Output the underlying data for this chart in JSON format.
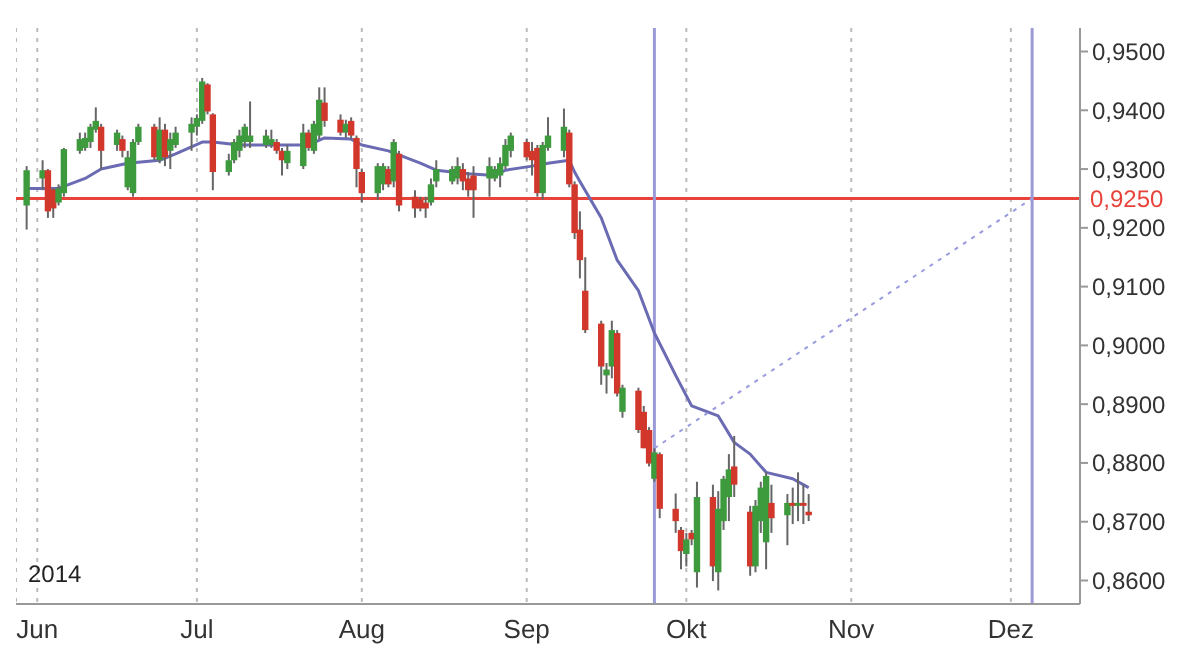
{
  "chart_data": {
    "type": "candlestick",
    "annotations": [
      "2014"
    ],
    "grid": "x",
    "xlim": [
      "2014-05-28",
      "2014-12-14"
    ],
    "xticks": [
      {
        "value": "2014-06-01",
        "label": "Jun"
      },
      {
        "value": "2014-07-01",
        "label": "Jul"
      },
      {
        "value": "2014-08-01",
        "label": "Aug"
      },
      {
        "value": "2014-09-01",
        "label": "Sep"
      },
      {
        "value": "2014-10-01",
        "label": "Okt"
      },
      {
        "value": "2014-11-01",
        "label": "Nov"
      },
      {
        "value": "2014-12-01",
        "label": "Dez"
      }
    ],
    "ylim": [
      0.856,
      0.954
    ],
    "yticks": [
      {
        "value": 0.86,
        "label": "0,8600"
      },
      {
        "value": 0.87,
        "label": "0,8700"
      },
      {
        "value": 0.88,
        "label": "0,8800"
      },
      {
        "value": 0.89,
        "label": "0,8900"
      },
      {
        "value": 0.9,
        "label": "0,9000"
      },
      {
        "value": 0.91,
        "label": "0,9100"
      },
      {
        "value": 0.92,
        "label": "0,9200"
      },
      {
        "value": 0.93,
        "label": "0,9300"
      },
      {
        "value": 0.94,
        "label": "0,9400"
      },
      {
        "value": 0.95,
        "label": "0,9500"
      }
    ],
    "ref_lines": [
      {
        "axis": "y",
        "value": 0.925,
        "label": "0,9250",
        "color": "#e8433a"
      },
      {
        "axis": "x",
        "value": "2014-09-25",
        "color": "#9a9ad6"
      },
      {
        "axis": "x",
        "value": "2014-12-05",
        "color": "#9a9ad6"
      }
    ],
    "series": [
      {
        "type": "candlestick",
        "x": [
          "2014-05-30",
          "2014-06-02",
          "2014-06-03",
          "2014-06-04",
          "2014-06-05",
          "2014-06-06",
          "2014-06-09",
          "2014-06-10",
          "2014-06-11",
          "2014-06-12",
          "2014-06-13",
          "2014-06-16",
          "2014-06-17",
          "2014-06-18",
          "2014-06-19",
          "2014-06-20",
          "2014-06-23",
          "2014-06-24",
          "2014-06-25",
          "2014-06-26",
          "2014-06-27",
          "2014-06-30",
          "2014-07-01",
          "2014-07-02",
          "2014-07-03",
          "2014-07-04",
          "2014-07-07",
          "2014-07-08",
          "2014-07-09",
          "2014-07-10",
          "2014-07-11",
          "2014-07-14",
          "2014-07-15",
          "2014-07-16",
          "2014-07-17",
          "2014-07-18",
          "2014-07-21",
          "2014-07-22",
          "2014-07-23",
          "2014-07-24",
          "2014-07-25",
          "2014-07-28",
          "2014-07-29",
          "2014-07-30",
          "2014-07-31",
          "2014-08-01",
          "2014-08-04",
          "2014-08-05",
          "2014-08-06",
          "2014-08-07",
          "2014-08-08",
          "2014-08-11",
          "2014-08-12",
          "2014-08-13",
          "2014-08-14",
          "2014-08-15",
          "2014-08-18",
          "2014-08-19",
          "2014-08-20",
          "2014-08-21",
          "2014-08-22",
          "2014-08-25",
          "2014-08-26",
          "2014-08-27",
          "2014-08-28",
          "2014-08-29",
          "2014-09-01",
          "2014-09-02",
          "2014-09-03",
          "2014-09-04",
          "2014-09-05",
          "2014-09-08",
          "2014-09-09",
          "2014-09-10",
          "2014-09-11",
          "2014-09-12",
          "2014-09-15",
          "2014-09-16",
          "2014-09-17",
          "2014-09-18",
          "2014-09-19",
          "2014-09-22",
          "2014-09-23",
          "2014-09-24",
          "2014-09-25",
          "2014-09-26",
          "2014-09-29",
          "2014-09-30",
          "2014-10-01",
          "2014-10-02",
          "2014-10-03",
          "2014-10-06",
          "2014-10-07",
          "2014-10-08",
          "2014-10-09",
          "2014-10-10",
          "2014-10-13",
          "2014-10-14",
          "2014-10-15",
          "2014-10-16",
          "2014-10-17",
          "2014-10-20",
          "2014-10-21",
          "2014-10-22",
          "2014-10-23",
          "2014-10-24"
        ],
        "ohlc": [
          [
            0.9238,
            0.9305,
            0.9197,
            0.9298
          ],
          [
            0.9284,
            0.9315,
            0.9264,
            0.9298
          ],
          [
            0.9298,
            0.93,
            0.9217,
            0.9228
          ],
          [
            0.9265,
            0.9268,
            0.9217,
            0.9233
          ],
          [
            0.9243,
            0.9274,
            0.9238,
            0.9267
          ],
          [
            0.9259,
            0.9336,
            0.9253,
            0.9334
          ],
          [
            0.9331,
            0.9362,
            0.9326,
            0.9351
          ],
          [
            0.9336,
            0.9362,
            0.9331,
            0.9353
          ],
          [
            0.9346,
            0.9377,
            0.9336,
            0.9372
          ],
          [
            0.9367,
            0.9405,
            0.9362,
            0.9382
          ],
          [
            0.9372,
            0.9377,
            0.93,
            0.9331
          ],
          [
            0.9341,
            0.9367,
            0.9331,
            0.9362
          ],
          [
            0.9351,
            0.9357,
            0.932,
            0.9331
          ],
          [
            0.9269,
            0.9331,
            0.9264,
            0.932
          ],
          [
            0.9259,
            0.9351,
            0.9253,
            0.9346
          ],
          [
            0.9346,
            0.9377,
            0.9341,
            0.9372
          ],
          [
            0.9372,
            0.9377,
            0.9315,
            0.932
          ],
          [
            0.9315,
            0.9388,
            0.931,
            0.9367
          ],
          [
            0.9367,
            0.9377,
            0.9305,
            0.932
          ],
          [
            0.9331,
            0.9362,
            0.93,
            0.9351
          ],
          [
            0.9341,
            0.9372,
            0.9336,
            0.9362
          ],
          [
            0.9362,
            0.9388,
            0.9331,
            0.9377
          ],
          [
            0.9372,
            0.9393,
            0.9357,
            0.9387
          ],
          [
            0.9382,
            0.9455,
            0.9377,
            0.9449
          ],
          [
            0.9444,
            0.9446,
            0.9393,
            0.9398
          ],
          [
            0.9393,
            0.9395,
            0.9264,
            0.9295
          ],
          [
            0.9295,
            0.9326,
            0.9289,
            0.9315
          ],
          [
            0.9315,
            0.9351,
            0.931,
            0.9346
          ],
          [
            0.9331,
            0.9367,
            0.932,
            0.9357
          ],
          [
            0.9346,
            0.9377,
            0.9336,
            0.9372
          ],
          [
            0.9346,
            0.9415,
            0.9336,
            0.9357
          ],
          [
            0.9341,
            0.9367,
            0.9336,
            0.9357
          ],
          [
            0.9341,
            0.9367,
            0.9336,
            0.9351
          ],
          [
            0.9346,
            0.9351,
            0.9326,
            0.9331
          ],
          [
            0.9331,
            0.9336,
            0.9289,
            0.9315
          ],
          [
            0.931,
            0.9341,
            0.93,
            0.9331
          ],
          [
            0.9305,
            0.9377,
            0.93,
            0.9362
          ],
          [
            0.9362,
            0.9367,
            0.9331,
            0.9336
          ],
          [
            0.9331,
            0.9382,
            0.9326,
            0.9377
          ],
          [
            0.9357,
            0.9439,
            0.9351,
            0.9418
          ],
          [
            0.9413,
            0.9439,
            0.9372,
            0.9382
          ],
          [
            0.9384,
            0.9393,
            0.9357,
            0.9362
          ],
          [
            0.9362,
            0.9384,
            0.9353,
            0.9377
          ],
          [
            0.9382,
            0.9388,
            0.9351,
            0.9357
          ],
          [
            0.9353,
            0.9357,
            0.9269,
            0.93
          ],
          [
            0.9295,
            0.93,
            0.9243,
            0.9259
          ],
          [
            0.9259,
            0.931,
            0.9248,
            0.9305
          ],
          [
            0.9274,
            0.931,
            0.9264,
            0.9305
          ],
          [
            0.93,
            0.9305,
            0.9269,
            0.9274
          ],
          [
            0.9279,
            0.9351,
            0.9269,
            0.9346
          ],
          [
            0.9326,
            0.9331,
            0.9228,
            0.9238
          ],
          [
            0.9253,
            0.9264,
            0.9217,
            0.9233
          ],
          [
            0.9248,
            0.9253,
            0.9228,
            0.9233
          ],
          [
            0.9243,
            0.9253,
            0.9217,
            0.9233
          ],
          [
            0.9243,
            0.9284,
            0.9238,
            0.9274
          ],
          [
            0.9279,
            0.9315,
            0.9269,
            0.93
          ],
          [
            0.9279,
            0.9305,
            0.9274,
            0.93
          ],
          [
            0.9284,
            0.932,
            0.9274,
            0.9305
          ],
          [
            0.93,
            0.931,
            0.9264,
            0.9279
          ],
          [
            0.9284,
            0.9295,
            0.9253,
            0.9264
          ],
          [
            0.9289,
            0.9305,
            0.9217,
            0.9264
          ],
          [
            0.9284,
            0.932,
            0.9253,
            0.9305
          ],
          [
            0.9284,
            0.9305,
            0.9279,
            0.93
          ],
          [
            0.9289,
            0.932,
            0.9269,
            0.931
          ],
          [
            0.9305,
            0.9351,
            0.93,
            0.9341
          ],
          [
            0.9331,
            0.9362,
            0.932,
            0.9357
          ],
          [
            0.9346,
            0.9351,
            0.9315,
            0.932
          ],
          [
            0.9331,
            0.9346,
            0.9289,
            0.9315
          ],
          [
            0.9336,
            0.9341,
            0.9253,
            0.9259
          ],
          [
            0.9259,
            0.9346,
            0.9248,
            0.9341
          ],
          [
            0.9336,
            0.9388,
            0.9331,
            0.9357
          ],
          [
            0.9331,
            0.9403,
            0.932,
            0.9372
          ],
          [
            0.9362,
            0.9367,
            0.9269,
            0.9274
          ],
          [
            0.9274,
            0.9279,
            0.9181,
            0.9191
          ],
          [
            0.9197,
            0.9228,
            0.9114,
            0.9145
          ],
          [
            0.9093,
            0.915,
            0.9021,
            0.9026
          ],
          [
            0.9037,
            0.9042,
            0.8933,
            0.8964
          ],
          [
            0.8949,
            0.897,
            0.8918,
            0.8959
          ],
          [
            0.8964,
            0.9042,
            0.8944,
            0.9026
          ],
          [
            0.9021,
            0.9026,
            0.8913,
            0.8918
          ],
          [
            0.8887,
            0.8933,
            0.8877,
            0.8928
          ],
          [
            0.8923,
            0.8928,
            0.8851,
            0.8856
          ],
          [
            0.8887,
            0.8897,
            0.8825,
            0.8825
          ],
          [
            0.8856,
            0.8861,
            0.8794,
            0.8799
          ],
          [
            0.8773,
            0.8825,
            0.8768,
            0.8818
          ],
          [
            0.8815,
            0.8818,
            0.8706,
            0.8722
          ],
          [
            0.8722,
            0.8748,
            0.8681,
            0.8701
          ],
          [
            0.8686,
            0.8691,
            0.8619,
            0.865
          ],
          [
            0.8645,
            0.8681,
            0.8624,
            0.867
          ],
          [
            0.8681,
            0.8686,
            0.866,
            0.867
          ],
          [
            0.8614,
            0.8768,
            0.8588,
            0.8742
          ],
          [
            0.8742,
            0.8763,
            0.8599,
            0.8624
          ],
          [
            0.8614,
            0.8752,
            0.8583,
            0.8722
          ],
          [
            0.8701,
            0.8778,
            0.8686,
            0.8773
          ],
          [
            0.8742,
            0.8815,
            0.8701,
            0.8789
          ],
          [
            0.8794,
            0.8846,
            0.8742,
            0.8763
          ],
          [
            0.8717,
            0.8727,
            0.8608,
            0.8624
          ],
          [
            0.8624,
            0.8737,
            0.8614,
            0.8727
          ],
          [
            0.8701,
            0.8768,
            0.8681,
            0.8758
          ],
          [
            0.8665,
            0.8784,
            0.8619,
            0.8778
          ],
          [
            0.8732,
            0.8763,
            0.8681,
            0.8706
          ],
          [
            0.8711,
            0.8747,
            0.866,
            0.8732
          ],
          [
            0.8732,
            0.8758,
            0.8696,
            0.8727
          ],
          [
            0.8727,
            0.8784,
            0.8701,
            0.8732
          ],
          [
            0.8732,
            0.8763,
            0.8696,
            0.8727
          ],
          [
            0.8717,
            0.8747,
            0.8701,
            0.8711
          ]
        ],
        "colors": [
          "#3d9a3d",
          "#3d9a3d",
          "#d2372c",
          "#d2372c",
          "#3d9a3d",
          "#3d9a3d",
          "#3d9a3d",
          "#3d9a3d",
          "#3d9a3d",
          "#3d9a3d",
          "#d2372c",
          "#3d9a3d",
          "#d2372c",
          "#3d9a3d",
          "#3d9a3d",
          "#3d9a3d",
          "#d2372c",
          "#3d9a3d",
          "#d2372c",
          "#3d9a3d",
          "#3d9a3d",
          "#3d9a3d",
          "#3d9a3d",
          "#3d9a3d",
          "#d2372c",
          "#d2372c",
          "#3d9a3d",
          "#3d9a3d",
          "#3d9a3d",
          "#3d9a3d",
          "#3d9a3d",
          "#3d9a3d",
          "#3d9a3d",
          "#d2372c",
          "#d2372c",
          "#3d9a3d",
          "#3d9a3d",
          "#d2372c",
          "#3d9a3d",
          "#3d9a3d",
          "#d2372c",
          "#d2372c",
          "#3d9a3d",
          "#d2372c",
          "#d2372c",
          "#d2372c",
          "#3d9a3d",
          "#3d9a3d",
          "#d2372c",
          "#3d9a3d",
          "#d2372c",
          "#d2372c",
          "#d2372c",
          "#d2372c",
          "#3d9a3d",
          "#3d9a3d",
          "#3d9a3d",
          "#3d9a3d",
          "#d2372c",
          "#d2372c",
          "#d2372c",
          "#3d9a3d",
          "#3d9a3d",
          "#3d9a3d",
          "#3d9a3d",
          "#3d9a3d",
          "#d2372c",
          "#d2372c",
          "#d2372c",
          "#3d9a3d",
          "#3d9a3d",
          "#3d9a3d",
          "#d2372c",
          "#d2372c",
          "#d2372c",
          "#d2372c",
          "#d2372c",
          "#3d9a3d",
          "#3d9a3d",
          "#d2372c",
          "#3d9a3d",
          "#d2372c",
          "#d2372c",
          "#d2372c",
          "#3d9a3d",
          "#d2372c",
          "#d2372c",
          "#d2372c",
          "#3d9a3d",
          "#d2372c",
          "#3d9a3d",
          "#d2372c",
          "#3d9a3d",
          "#3d9a3d",
          "#3d9a3d",
          "#d2372c",
          "#d2372c",
          "#3d9a3d",
          "#3d9a3d",
          "#3d9a3d",
          "#d2372c",
          "#3d9a3d",
          "#d2372c",
          "#3d9a3d",
          "#d2372c",
          "#d2372c"
        ]
      },
      {
        "type": "line",
        "color": "#6b6bb4",
        "x": [
          "2014-05-30",
          "2014-06-05",
          "2014-06-10",
          "2014-06-13",
          "2014-06-18",
          "2014-06-24",
          "2014-06-27",
          "2014-07-02",
          "2014-07-04",
          "2014-07-09",
          "2014-07-15",
          "2014-07-22",
          "2014-07-25",
          "2014-07-30",
          "2014-08-01",
          "2014-08-06",
          "2014-08-12",
          "2014-08-15",
          "2014-08-21",
          "2014-08-26",
          "2014-08-28",
          "2014-09-02",
          "2014-09-05",
          "2014-09-09",
          "2014-09-10",
          "2014-09-11",
          "2014-09-15",
          "2014-09-18",
          "2014-09-22",
          "2014-09-25",
          "2014-09-29",
          "2014-10-02",
          "2014-10-07",
          "2014-10-10",
          "2014-10-13",
          "2014-10-16",
          "2014-10-21",
          "2014-10-24"
        ],
        "values": [
          0.9267,
          0.9267,
          0.9284,
          0.93,
          0.931,
          0.9315,
          0.9326,
          0.9346,
          0.9346,
          0.9341,
          0.9341,
          0.9341,
          0.9353,
          0.9351,
          0.9341,
          0.9331,
          0.931,
          0.9298,
          0.9292,
          0.9289,
          0.9298,
          0.9305,
          0.931,
          0.9315,
          0.9295,
          0.9279,
          0.9217,
          0.9145,
          0.9093,
          0.9021,
          0.8949,
          0.8897,
          0.888,
          0.8835,
          0.8815,
          0.8784,
          0.8773,
          0.8758
        ]
      },
      {
        "type": "line",
        "color": "#9a9ae0",
        "line_style": "dotted",
        "x": [
          "2014-09-25",
          "2014-12-05"
        ],
        "values": [
          0.8825,
          0.925
        ]
      }
    ]
  }
}
